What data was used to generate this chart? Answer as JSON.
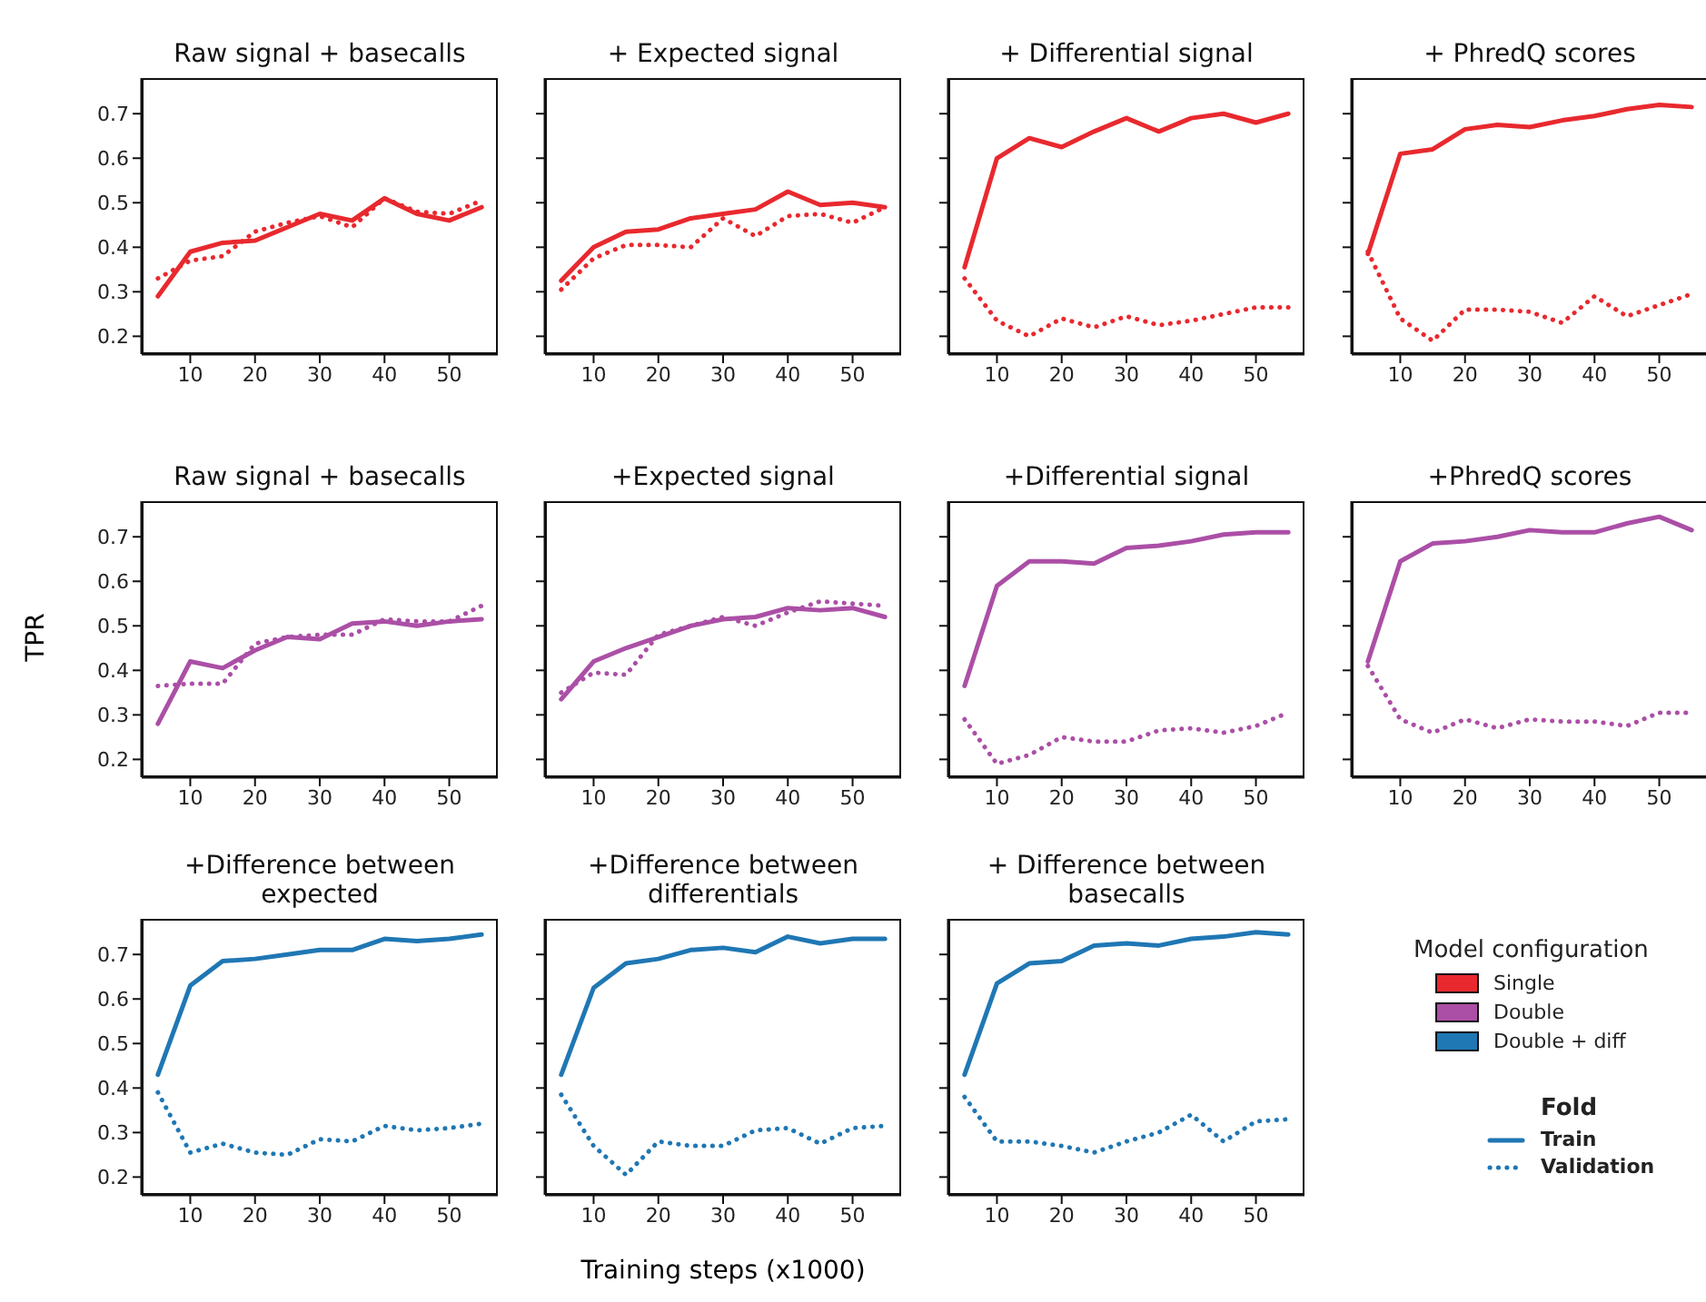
{
  "chart_data": [
    {
      "type": "line",
      "title": "Raw signal + basecalls",
      "x": [
        5,
        10,
        15,
        20,
        25,
        30,
        35,
        40,
        45,
        50,
        55
      ],
      "xlim": [
        2.5,
        57.5
      ],
      "xticks": [
        10,
        20,
        30,
        40,
        50
      ],
      "ylim": [
        0.16,
        0.78
      ],
      "yticks": [
        0.2,
        0.3,
        0.4,
        0.5,
        0.6,
        0.7
      ],
      "series": [
        {
          "color": "#e8292e",
          "line_style": "solid",
          "values": [
            0.29,
            0.39,
            0.41,
            0.415,
            0.445,
            0.475,
            0.46,
            0.51,
            0.475,
            0.46,
            0.49
          ]
        },
        {
          "color": "#e8292e",
          "line_style": "dotted",
          "values": [
            0.33,
            0.37,
            0.38,
            0.435,
            0.455,
            0.47,
            0.445,
            0.51,
            0.48,
            0.475,
            0.505
          ]
        }
      ]
    },
    {
      "type": "line",
      "title": "+ Expected signal",
      "tick_labels": "x",
      "x": [
        5,
        10,
        15,
        20,
        25,
        30,
        35,
        40,
        45,
        50,
        55
      ],
      "xlim": [
        2.5,
        57.5
      ],
      "xticks": [
        10,
        20,
        30,
        40,
        50
      ],
      "ylim": [
        0.16,
        0.78
      ],
      "yticks": [
        0.2,
        0.3,
        0.4,
        0.5,
        0.6,
        0.7
      ],
      "series": [
        {
          "color": "#e8292e",
          "line_style": "solid",
          "values": [
            0.325,
            0.4,
            0.435,
            0.44,
            0.465,
            0.475,
            0.485,
            0.525,
            0.495,
            0.5,
            0.49
          ]
        },
        {
          "color": "#e8292e",
          "line_style": "dotted",
          "values": [
            0.305,
            0.375,
            0.405,
            0.405,
            0.4,
            0.465,
            0.425,
            0.47,
            0.475,
            0.455,
            0.49
          ]
        }
      ]
    },
    {
      "type": "line",
      "title": "+ Differential signal",
      "tick_labels": "x",
      "x": [
        5,
        10,
        15,
        20,
        25,
        30,
        35,
        40,
        45,
        50,
        55
      ],
      "xlim": [
        2.5,
        57.5
      ],
      "xticks": [
        10,
        20,
        30,
        40,
        50
      ],
      "ylim": [
        0.16,
        0.78
      ],
      "yticks": [
        0.2,
        0.3,
        0.4,
        0.5,
        0.6,
        0.7
      ],
      "series": [
        {
          "color": "#e8292e",
          "line_style": "solid",
          "values": [
            0.355,
            0.6,
            0.645,
            0.625,
            0.66,
            0.69,
            0.66,
            0.69,
            0.7,
            0.68,
            0.7
          ]
        },
        {
          "color": "#e8292e",
          "line_style": "dotted",
          "values": [
            0.33,
            0.235,
            0.2,
            0.24,
            0.22,
            0.245,
            0.225,
            0.235,
            0.25,
            0.265,
            0.265
          ]
        }
      ]
    },
    {
      "type": "line",
      "title": "+ PhredQ scores",
      "tick_labels": "x",
      "x": [
        5,
        10,
        15,
        20,
        25,
        30,
        35,
        40,
        45,
        50,
        55
      ],
      "xlim": [
        2.5,
        57.5
      ],
      "xticks": [
        10,
        20,
        30,
        40,
        50
      ],
      "ylim": [
        0.16,
        0.78
      ],
      "yticks": [
        0.2,
        0.3,
        0.4,
        0.5,
        0.6,
        0.7
      ],
      "series": [
        {
          "color": "#e8292e",
          "line_style": "solid",
          "values": [
            0.385,
            0.61,
            0.62,
            0.665,
            0.675,
            0.67,
            0.685,
            0.695,
            0.71,
            0.72,
            0.715
          ]
        },
        {
          "color": "#e8292e",
          "line_style": "dotted",
          "values": [
            0.39,
            0.24,
            0.19,
            0.26,
            0.26,
            0.255,
            0.23,
            0.29,
            0.245,
            0.27,
            0.295
          ]
        }
      ]
    },
    {
      "type": "line",
      "title": "Raw signal + basecalls",
      "ylabel": "TPR",
      "x": [
        5,
        10,
        15,
        20,
        25,
        30,
        35,
        40,
        45,
        50,
        55
      ],
      "xlim": [
        2.5,
        57.5
      ],
      "xticks": [
        10,
        20,
        30,
        40,
        50
      ],
      "ylim": [
        0.16,
        0.78
      ],
      "yticks": [
        0.2,
        0.3,
        0.4,
        0.5,
        0.6,
        0.7
      ],
      "series": [
        {
          "color": "#ab4fa6",
          "line_style": "solid",
          "values": [
            0.28,
            0.42,
            0.405,
            0.445,
            0.475,
            0.47,
            0.505,
            0.51,
            0.5,
            0.51,
            0.515
          ]
        },
        {
          "color": "#ab4fa6",
          "line_style": "dotted",
          "values": [
            0.365,
            0.37,
            0.37,
            0.46,
            0.475,
            0.48,
            0.48,
            0.515,
            0.51,
            0.51,
            0.545
          ]
        }
      ]
    },
    {
      "type": "line",
      "title": "+Expected signal",
      "tick_labels": "x",
      "x": [
        5,
        10,
        15,
        20,
        25,
        30,
        35,
        40,
        45,
        50,
        55
      ],
      "xlim": [
        2.5,
        57.5
      ],
      "xticks": [
        10,
        20,
        30,
        40,
        50
      ],
      "ylim": [
        0.16,
        0.78
      ],
      "yticks": [
        0.2,
        0.3,
        0.4,
        0.5,
        0.6,
        0.7
      ],
      "series": [
        {
          "color": "#ab4fa6",
          "line_style": "solid",
          "values": [
            0.335,
            0.42,
            0.45,
            0.475,
            0.5,
            0.515,
            0.52,
            0.54,
            0.535,
            0.54,
            0.52
          ]
        },
        {
          "color": "#ab4fa6",
          "line_style": "dotted",
          "values": [
            0.35,
            0.395,
            0.39,
            0.48,
            0.5,
            0.52,
            0.5,
            0.53,
            0.555,
            0.55,
            0.545
          ]
        }
      ]
    },
    {
      "type": "line",
      "title": "+Differential signal",
      "tick_labels": "x",
      "x": [
        5,
        10,
        15,
        20,
        25,
        30,
        35,
        40,
        45,
        50,
        55
      ],
      "xlim": [
        2.5,
        57.5
      ],
      "xticks": [
        10,
        20,
        30,
        40,
        50
      ],
      "ylim": [
        0.16,
        0.78
      ],
      "yticks": [
        0.2,
        0.3,
        0.4,
        0.5,
        0.6,
        0.7
      ],
      "series": [
        {
          "color": "#ab4fa6",
          "line_style": "solid",
          "values": [
            0.365,
            0.59,
            0.645,
            0.645,
            0.64,
            0.675,
            0.68,
            0.69,
            0.705,
            0.71,
            0.71
          ]
        },
        {
          "color": "#ab4fa6",
          "line_style": "dotted",
          "values": [
            0.29,
            0.19,
            0.21,
            0.25,
            0.24,
            0.24,
            0.265,
            0.27,
            0.26,
            0.275,
            0.305
          ]
        }
      ]
    },
    {
      "type": "line",
      "title": "+PhredQ scores",
      "tick_labels": "x",
      "x": [
        5,
        10,
        15,
        20,
        25,
        30,
        35,
        40,
        45,
        50,
        55
      ],
      "xlim": [
        2.5,
        57.5
      ],
      "xticks": [
        10,
        20,
        30,
        40,
        50
      ],
      "ylim": [
        0.16,
        0.78
      ],
      "yticks": [
        0.2,
        0.3,
        0.4,
        0.5,
        0.6,
        0.7
      ],
      "series": [
        {
          "color": "#ab4fa6",
          "line_style": "solid",
          "values": [
            0.42,
            0.645,
            0.685,
            0.69,
            0.7,
            0.715,
            0.71,
            0.71,
            0.73,
            0.745,
            0.715
          ]
        },
        {
          "color": "#ab4fa6",
          "line_style": "dotted",
          "values": [
            0.41,
            0.29,
            0.26,
            0.29,
            0.27,
            0.29,
            0.285,
            0.285,
            0.275,
            0.305,
            0.305
          ]
        }
      ]
    },
    {
      "type": "line",
      "title": "+Difference between expected",
      "x": [
        5,
        10,
        15,
        20,
        25,
        30,
        35,
        40,
        45,
        50,
        55
      ],
      "xlim": [
        2.5,
        57.5
      ],
      "xticks": [
        10,
        20,
        30,
        40,
        50
      ],
      "ylim": [
        0.16,
        0.78
      ],
      "yticks": [
        0.2,
        0.3,
        0.4,
        0.5,
        0.6,
        0.7
      ],
      "series": [
        {
          "color": "#1f77b4",
          "line_style": "solid",
          "values": [
            0.43,
            0.63,
            0.685,
            0.69,
            0.7,
            0.71,
            0.71,
            0.735,
            0.73,
            0.735,
            0.745
          ]
        },
        {
          "color": "#1f77b4",
          "line_style": "dotted",
          "values": [
            0.39,
            0.255,
            0.275,
            0.255,
            0.25,
            0.285,
            0.28,
            0.315,
            0.305,
            0.31,
            0.32
          ]
        }
      ]
    },
    {
      "type": "line",
      "title": "+Difference between differentials",
      "xlabel": "Training steps (x1000)",
      "tick_labels": "x",
      "x": [
        5,
        10,
        15,
        20,
        25,
        30,
        35,
        40,
        45,
        50,
        55
      ],
      "xlim": [
        2.5,
        57.5
      ],
      "xticks": [
        10,
        20,
        30,
        40,
        50
      ],
      "ylim": [
        0.16,
        0.78
      ],
      "yticks": [
        0.2,
        0.3,
        0.4,
        0.5,
        0.6,
        0.7
      ],
      "series": [
        {
          "color": "#1f77b4",
          "line_style": "solid",
          "values": [
            0.43,
            0.625,
            0.68,
            0.69,
            0.71,
            0.715,
            0.705,
            0.74,
            0.725,
            0.735,
            0.735
          ]
        },
        {
          "color": "#1f77b4",
          "line_style": "dotted",
          "values": [
            0.385,
            0.27,
            0.205,
            0.28,
            0.27,
            0.27,
            0.305,
            0.31,
            0.275,
            0.31,
            0.315
          ]
        }
      ]
    },
    {
      "type": "line",
      "title": "+ Difference between basecalls",
      "tick_labels": "x",
      "legend": "right",
      "legend_title": "Fold",
      "annotations": [
        "Model configuration",
        "Single",
        "Double",
        "Double + diff"
      ],
      "x": [
        5,
        10,
        15,
        20,
        25,
        30,
        35,
        40,
        45,
        50,
        55
      ],
      "xlim": [
        2.5,
        57.5
      ],
      "xticks": [
        10,
        20,
        30,
        40,
        50
      ],
      "ylim": [
        0.16,
        0.78
      ],
      "yticks": [
        0.2,
        0.3,
        0.4,
        0.5,
        0.6,
        0.7
      ],
      "series": [
        {
          "name": "Train",
          "color": "#1f77b4",
          "line_style": "solid",
          "values": [
            0.43,
            0.635,
            0.68,
            0.685,
            0.72,
            0.725,
            0.72,
            0.735,
            0.74,
            0.75,
            0.745
          ]
        },
        {
          "name": "Validation",
          "color": "#1f77b4",
          "line_style": "dotted",
          "values": [
            0.38,
            0.28,
            0.28,
            0.27,
            0.255,
            0.28,
            0.3,
            0.34,
            0.28,
            0.325,
            0.33
          ]
        }
      ]
    }
  ]
}
